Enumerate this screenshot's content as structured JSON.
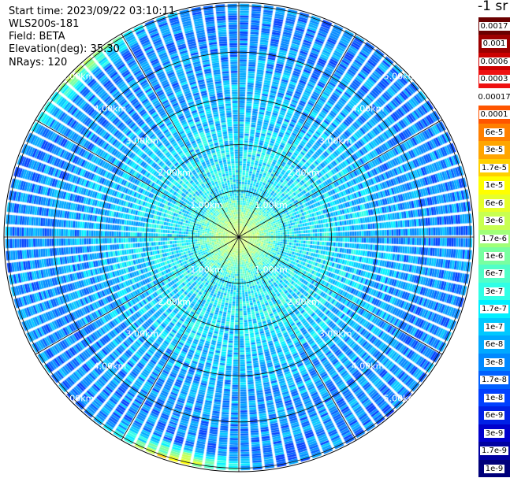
{
  "header": {
    "start_time": "Start time: 2023/09/22 03:10:11",
    "instrument": "WLS200s-181",
    "field": "Field: BETA",
    "elevation": "Elevation(deg): 35.30",
    "nrays": "NRays: 120"
  },
  "unit_label": "-1 sr",
  "colorbar": {
    "labels": [
      "0.0017",
      "0.001",
      "0.0006",
      "0.0003",
      "0.00017",
      "0.0001",
      "6e-5",
      "3e-5",
      "1.7e-5",
      "1e-5",
      "6e-6",
      "3e-6",
      "1.7e-6",
      "1e-6",
      "6e-7",
      "3e-7",
      "1.7e-7",
      "1e-7",
      "6e-8",
      "3e-8",
      "1.7e-8",
      "1e-8",
      "6e-9",
      "3e-9",
      "1.7e-9",
      "1e-9"
    ],
    "colors": [
      "#6a0000",
      "#9c0000",
      "#cc0000",
      "#ee1111",
      "#ffffff",
      "#ff5500",
      "#ff7f00",
      "#ffa500",
      "#ffd000",
      "#ffff00",
      "#e6ff2a",
      "#c8ff50",
      "#a0ff78",
      "#78ffa0",
      "#50ffc8",
      "#30ffe6",
      "#00f0ff",
      "#00c8ff",
      "#00a8ff",
      "#0088ff",
      "#0060ff",
      "#0040ff",
      "#0020e6",
      "#0000cc",
      "#0000a0",
      "#00007a"
    ]
  },
  "chart_data": {
    "type": "ppi",
    "field": "BETA",
    "nrays": 120,
    "range_unit": "km",
    "max_range_km": 5.0,
    "ring_labels": [
      "1.00km",
      "2.00km",
      "3.00km",
      "4.00km",
      "5.00km"
    ],
    "range_rings_km": [
      1,
      2,
      3,
      4,
      5
    ],
    "spoke_step_deg": 30,
    "value_range": [
      1e-09,
      0.0017
    ],
    "range_bins": [
      {
        "km": 0.15,
        "beta": 4e-06
      },
      {
        "km": 0.5,
        "beta": 1.5e-06
      },
      {
        "km": 1.0,
        "beta": 2.5e-07
      },
      {
        "km": 1.5,
        "beta": 2.2e-07
      },
      {
        "km": 2.0,
        "beta": 1.7e-07
      },
      {
        "km": 2.5,
        "beta": 1.2e-07
      },
      {
        "km": 3.0,
        "beta": 8e-08
      },
      {
        "km": 3.5,
        "beta": 6e-08
      },
      {
        "km": 4.0,
        "beta": 5e-08
      },
      {
        "km": 4.5,
        "beta": 4e-08
      },
      {
        "km": 5.0,
        "beta": 3.5e-08
      }
    ],
    "far_range_enhancement": [
      {
        "azimuth_deg": 315,
        "beta": 1e-05
      },
      {
        "azimuth_deg": 195,
        "beta": 3e-05
      }
    ]
  }
}
